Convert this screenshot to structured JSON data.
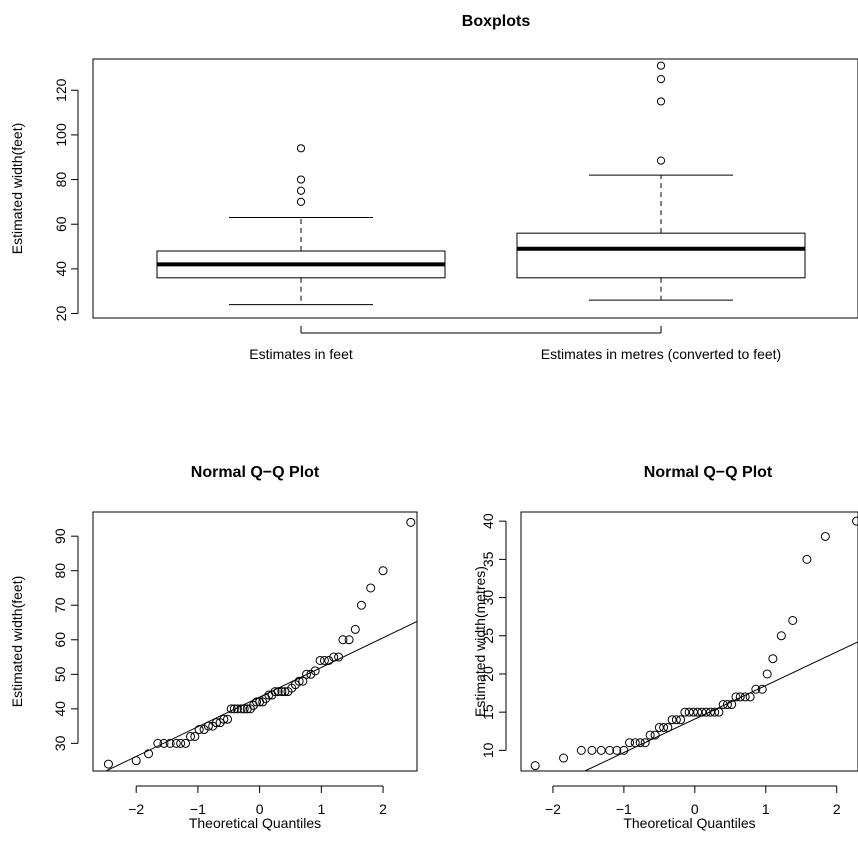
{
  "colors": {
    "foreground": "#000000",
    "background": "#ffffff"
  },
  "chart_data": [
    {
      "type": "boxplot",
      "title": "Boxplots",
      "ylabel": "Estimated width(feet)",
      "xlabel": "",
      "ylim": [
        18,
        134
      ],
      "yticks": [
        20,
        40,
        60,
        80,
        100,
        120
      ],
      "categories": [
        "Estimates in feet",
        "Estimates in metres (converted to feet)"
      ],
      "boxes": [
        {
          "whisker_low": 24,
          "q1": 36,
          "median": 42,
          "q3": 48,
          "whisker_high": 63,
          "outliers": [
            70,
            75,
            80,
            94
          ]
        },
        {
          "whisker_low": 26,
          "q1": 36,
          "median": 49,
          "q3": 56,
          "whisker_high": 82,
          "outliers": [
            88.5,
            115,
            125,
            131
          ]
        }
      ],
      "grid": false
    },
    {
      "type": "scatter",
      "subtype": "qq",
      "title": "Normal Q−Q Plot",
      "xlabel": "Theoretical Quantiles",
      "ylabel": "Estimated width(feet)",
      "xlim": [
        -2.7,
        2.55
      ],
      "ylim": [
        22,
        97
      ],
      "xticks": [
        -2,
        -1,
        0,
        1,
        2
      ],
      "yticks": [
        30,
        40,
        50,
        60,
        70,
        80,
        90
      ],
      "points": [
        [
          -2.45,
          24
        ],
        [
          -2.0,
          25
        ],
        [
          -1.8,
          27
        ],
        [
          -1.65,
          30
        ],
        [
          -1.55,
          30
        ],
        [
          -1.45,
          30
        ],
        [
          -1.35,
          30
        ],
        [
          -1.28,
          30
        ],
        [
          -1.2,
          30
        ],
        [
          -1.12,
          32
        ],
        [
          -1.05,
          32
        ],
        [
          -0.98,
          34
        ],
        [
          -0.9,
          34
        ],
        [
          -0.83,
          35
        ],
        [
          -0.76,
          35
        ],
        [
          -0.7,
          36
        ],
        [
          -0.64,
          36
        ],
        [
          -0.58,
          37
        ],
        [
          -0.52,
          37
        ],
        [
          -0.46,
          40
        ],
        [
          -0.41,
          40
        ],
        [
          -0.36,
          40
        ],
        [
          -0.3,
          40
        ],
        [
          -0.25,
          40
        ],
        [
          -0.2,
          40
        ],
        [
          -0.15,
          40
        ],
        [
          -0.1,
          41
        ],
        [
          -0.05,
          42
        ],
        [
          0.0,
          42
        ],
        [
          0.05,
          42
        ],
        [
          0.1,
          43
        ],
        [
          0.15,
          44
        ],
        [
          0.2,
          44
        ],
        [
          0.25,
          45
        ],
        [
          0.3,
          45
        ],
        [
          0.36,
          45
        ],
        [
          0.41,
          45
        ],
        [
          0.46,
          45
        ],
        [
          0.52,
          46
        ],
        [
          0.58,
          47
        ],
        [
          0.64,
          48
        ],
        [
          0.7,
          48
        ],
        [
          0.76,
          50
        ],
        [
          0.83,
          50
        ],
        [
          0.9,
          51
        ],
        [
          0.98,
          54
        ],
        [
          1.05,
          54
        ],
        [
          1.12,
          54
        ],
        [
          1.2,
          55
        ],
        [
          1.28,
          55
        ],
        [
          1.35,
          60
        ],
        [
          1.45,
          60
        ],
        [
          1.55,
          63
        ],
        [
          1.65,
          70
        ],
        [
          1.8,
          75
        ],
        [
          2.0,
          80
        ],
        [
          2.45,
          94
        ]
      ],
      "reference_line": {
        "x1": -2.7,
        "y1": 20.2,
        "x2": 2.55,
        "y2": 65.3
      }
    },
    {
      "type": "scatter",
      "subtype": "qq",
      "title": "Normal Q−Q Plot",
      "xlabel": "Theoretical Quantiles",
      "ylabel": "Estimated width(metres)",
      "xlim": [
        -2.45,
        2.3
      ],
      "ylim": [
        7.3,
        41.2
      ],
      "xticks": [
        -2,
        -1,
        0,
        1,
        2
      ],
      "yticks": [
        10,
        15,
        20,
        25,
        30,
        35,
        40
      ],
      "points": [
        [
          -2.25,
          8
        ],
        [
          -1.85,
          9
        ],
        [
          -1.6,
          10
        ],
        [
          -1.45,
          10
        ],
        [
          -1.32,
          10
        ],
        [
          -1.2,
          10
        ],
        [
          -1.1,
          10
        ],
        [
          -1.0,
          10
        ],
        [
          -0.92,
          11
        ],
        [
          -0.84,
          11
        ],
        [
          -0.77,
          11
        ],
        [
          -0.7,
          11
        ],
        [
          -0.63,
          12
        ],
        [
          -0.56,
          12
        ],
        [
          -0.5,
          13
        ],
        [
          -0.44,
          13
        ],
        [
          -0.38,
          13
        ],
        [
          -0.32,
          14
        ],
        [
          -0.26,
          14
        ],
        [
          -0.2,
          14
        ],
        [
          -0.14,
          15
        ],
        [
          -0.08,
          15
        ],
        [
          -0.02,
          15
        ],
        [
          0.04,
          15
        ],
        [
          0.1,
          15
        ],
        [
          0.16,
          15
        ],
        [
          0.22,
          15
        ],
        [
          0.28,
          15
        ],
        [
          0.34,
          15
        ],
        [
          0.4,
          16
        ],
        [
          0.46,
          16
        ],
        [
          0.52,
          16
        ],
        [
          0.58,
          17
        ],
        [
          0.64,
          17
        ],
        [
          0.71,
          17
        ],
        [
          0.78,
          17
        ],
        [
          0.86,
          18
        ],
        [
          0.95,
          18
        ],
        [
          1.02,
          20
        ],
        [
          1.1,
          22
        ],
        [
          1.22,
          25
        ],
        [
          1.38,
          27
        ],
        [
          1.58,
          35
        ],
        [
          1.84,
          38
        ],
        [
          2.28,
          40
        ]
      ],
      "reference_line": {
        "x1": -1.55,
        "y1": 7.3,
        "x2": 2.3,
        "y2": 24.2
      }
    }
  ]
}
